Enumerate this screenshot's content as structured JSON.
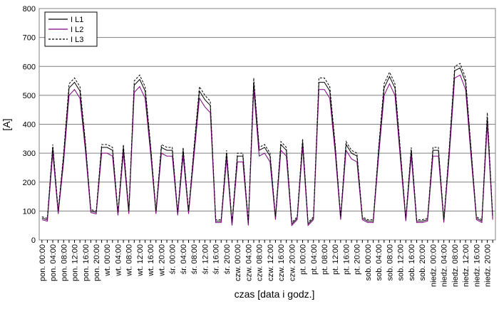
{
  "chart_data": {
    "type": "line",
    "ylabel": "[A]",
    "xlabel": "czas [data i godz.]",
    "ylim": [
      0,
      800
    ],
    "yticks": [
      0,
      100,
      200,
      300,
      400,
      500,
      600,
      700,
      800
    ],
    "grid": true,
    "legend": "upper left",
    "categories": [
      "pon. 00:00",
      null,
      "pon. 04:00",
      null,
      "pon. 08:00",
      null,
      "pon. 12:00",
      null,
      "pon. 16:00",
      null,
      "pon. 20:00",
      null,
      "wt. 00:00",
      null,
      "wt. 04:00",
      null,
      "wt. 08:00",
      null,
      "wt. 12:00",
      null,
      "wt. 16:00",
      null,
      "wt. 20:00",
      null,
      "śr. 00:00",
      null,
      "śr. 04:00",
      null,
      "śr. 08:00",
      null,
      "śr. 12:00",
      null,
      "śr. 16:00",
      null,
      "śr. 20:00",
      null,
      "czw. 00:00",
      null,
      "czw. 04:00",
      null,
      "czw. 08:00",
      null,
      "czw. 12:00",
      null,
      "czw. 16:00",
      null,
      "czw. 20:00",
      null,
      "pt. 00:00",
      null,
      "pt. 04:00",
      null,
      "pt. 08:00",
      null,
      "pt. 12:00",
      null,
      "pt. 16:00",
      null,
      "pt. 20:00",
      null,
      "sob. 00:00",
      null,
      "sob. 04:00",
      null,
      "sob. 08:00",
      null,
      "sob. 12:00",
      null,
      "sob. 16:00",
      null,
      "sob. 20:00",
      null,
      "niedz. 00:00",
      null,
      "niedz. 04:00",
      null,
      "niedz. 08:00",
      null,
      "niedz. 12:00",
      null,
      "niedz. 16:00",
      null,
      "niedz. 20:00",
      null
    ],
    "series": [
      {
        "name": "I L1",
        "color": "#000000",
        "dash": "none",
        "values": [
          75,
          70,
          320,
          95,
          290,
          525,
          545,
          515,
          330,
          100,
          95,
          320,
          320,
          310,
          90,
          320,
          95,
          535,
          555,
          515,
          320,
          95,
          320,
          310,
          310,
          90,
          310,
          95,
          310,
          515,
          485,
          465,
          65,
          65,
          300,
          55,
          290,
          290,
          55,
          545,
          310,
          320,
          290,
          75,
          330,
          310,
          55,
          75,
          340,
          55,
          75,
          545,
          545,
          515,
          320,
          75,
          330,
          300,
          290,
          75,
          65,
          65,
          310,
          525,
          565,
          525,
          300,
          70,
          310,
          65,
          65,
          70,
          310,
          310,
          65,
          310,
          585,
          595,
          545,
          310,
          75,
          65,
          425,
          75
        ]
      },
      {
        "name": "I L2",
        "color": "#800080",
        "dash": "none",
        "values": [
          70,
          65,
          300,
          90,
          270,
          500,
          520,
          490,
          310,
          95,
          90,
          300,
          300,
          290,
          85,
          300,
          90,
          510,
          530,
          490,
          300,
          90,
          300,
          290,
          290,
          85,
          290,
          90,
          290,
          490,
          460,
          440,
          60,
          60,
          280,
          50,
          270,
          270,
          50,
          520,
          290,
          300,
          270,
          70,
          310,
          290,
          50,
          70,
          320,
          50,
          70,
          520,
          520,
          490,
          300,
          70,
          310,
          280,
          270,
          70,
          60,
          60,
          290,
          500,
          540,
          500,
          280,
          65,
          290,
          60,
          60,
          65,
          290,
          290,
          60,
          290,
          560,
          570,
          520,
          290,
          70,
          60,
          400,
          70
        ]
      },
      {
        "name": "I L3",
        "color": "#000000",
        "dash": "3,2",
        "values": [
          80,
          75,
          330,
          100,
          300,
          540,
          560,
          530,
          340,
          105,
          100,
          330,
          330,
          320,
          95,
          330,
          100,
          550,
          570,
          530,
          330,
          100,
          330,
          320,
          320,
          95,
          320,
          100,
          320,
          530,
          500,
          480,
          70,
          70,
          310,
          60,
          300,
          300,
          60,
          560,
          320,
          330,
          300,
          80,
          340,
          320,
          60,
          80,
          350,
          60,
          80,
          560,
          560,
          530,
          330,
          80,
          340,
          310,
          300,
          80,
          70,
          70,
          320,
          540,
          580,
          540,
          310,
          75,
          320,
          70,
          70,
          75,
          320,
          320,
          70,
          320,
          600,
          610,
          560,
          320,
          80,
          70,
          440,
          80
        ]
      }
    ]
  }
}
